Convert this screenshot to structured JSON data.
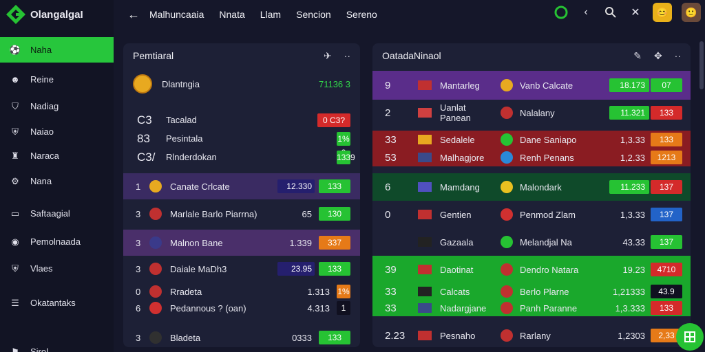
{
  "app": {
    "title": "OlangalgaI"
  },
  "topbar": {
    "nav": [
      "Malhuncaaia",
      "Nnata",
      "Llam",
      "Sencion",
      "Sereno"
    ]
  },
  "sidebar": {
    "items": [
      {
        "label": "Naha",
        "icon": "soccer-icon",
        "active": true
      },
      {
        "label": "Reine",
        "icon": "people-icon"
      },
      {
        "label": "Nadiag",
        "icon": "badge-icon"
      },
      {
        "label": "Naiao",
        "icon": "shield-icon"
      },
      {
        "label": "Naraca",
        "icon": "cup-icon"
      },
      {
        "label": "Nana",
        "icon": "gear-icon"
      },
      {
        "label": "Saftaagial",
        "icon": "screen-icon"
      },
      {
        "label": "Pemolnaada",
        "icon": "ball-icon"
      },
      {
        "label": "Vlaes",
        "icon": "shield-icon"
      },
      {
        "label": "Okatantaks",
        "icon": "menu-icon"
      },
      {
        "label": "Sirol",
        "icon": "flag-icon"
      }
    ]
  },
  "left_panel": {
    "title": "Pemtiaral",
    "header_row": {
      "name": "Dlantngia",
      "value": "71136 3"
    },
    "list": [
      {
        "num": "C3",
        "label": "Tacalad",
        "value": "0 C3?",
        "color": "r"
      },
      {
        "num": "83",
        "label": "Pesintala",
        "value": "1% 2",
        "color": "g"
      },
      {
        "num": "C3/",
        "label": "Rlnderdokan",
        "value": "1339",
        "color": "g"
      }
    ],
    "rows": [
      {
        "rank": "1",
        "team": "Canate Crlcate",
        "score": "12.330",
        "val": "133",
        "bg": "#3a2b62",
        "b1": "n",
        "b2": "g"
      },
      {
        "rank": "3",
        "team": "Marlale Barlo Piarrna)",
        "score": "65",
        "val": "130",
        "bg": "transparent",
        "b1": "",
        "b2": "g"
      },
      {
        "rank": "3",
        "team": "Malnon Bane",
        "score": "1.339",
        "val": "337",
        "bg": "#4a2f6a",
        "b1": "",
        "b2": "o"
      },
      {
        "rank": "3",
        "team": "Daiale MaDh3",
        "score": "23.95",
        "val": "133",
        "bg": "transparent",
        "b1": "n",
        "b2": "g"
      },
      {
        "rank": "0",
        "team": "Rradeta",
        "score": "1.313",
        "val": "1%",
        "bg": "transparent",
        "b1": "",
        "b2": "o"
      },
      {
        "rank": "6",
        "team": "Pedannous ? (oan)",
        "score": "4.313",
        "val": "1",
        "bg": "transparent",
        "b1": "",
        "b2": "dk"
      },
      {
        "rank": "3",
        "team": "Bladeta",
        "score": "0333",
        "val": "133",
        "bg": "transparent",
        "b1": "",
        "b2": "g"
      }
    ]
  },
  "right_panel": {
    "title": "OatadaNinaol",
    "rows": [
      {
        "rank": "9",
        "home": "Mantarleg",
        "away": "Vanb Calcate",
        "score": "18.173",
        "val": "07",
        "bg": "#5a2d8a",
        "b1": "g",
        "b2": "g"
      },
      {
        "rank": "2",
        "home": "Uanlat Panean",
        "away": "Nalalany",
        "score": "11.321",
        "val": "133",
        "bg": "transparent",
        "b1": "g",
        "b2": "r"
      },
      {
        "rank": "33",
        "home": "Sedalele",
        "away": "Dane Saniapo",
        "score": "1,3.33",
        "val": "133",
        "bg": "#8a1c22",
        "b1": "",
        "b2": "o"
      },
      {
        "rank": "53",
        "home": "Malhagjore",
        "away": "Renh Penans",
        "score": "1,2.33",
        "val": "1213",
        "bg": "#8a1c22",
        "b1": "",
        "b2": "o"
      },
      {
        "rank": "6",
        "home": "Mamdang",
        "away": "Malondark",
        "score": "11.233",
        "val": "137",
        "bg": "#0f4a2a",
        "b1": "g",
        "b2": "r"
      },
      {
        "rank": "0",
        "home": "Gentien",
        "away": "Penmod Zlam",
        "score": "1,3.33",
        "val": "137",
        "bg": "transparent",
        "b1": "",
        "b2": "b"
      },
      {
        "rank": "",
        "home": "Gazaala",
        "away": "Melandjal Na",
        "score": "43.33",
        "val": "137",
        "bg": "transparent",
        "b1": "",
        "b2": "g"
      },
      {
        "rank": "39",
        "home": "Daotinat",
        "away": "Dendro Natara",
        "score": "19.23",
        "val": "4710",
        "bg": "#1aa82c",
        "b1": "",
        "b2": "r"
      },
      {
        "rank": "33",
        "home": "Calcats",
        "away": "Berlo Plarne",
        "score": "1,21333",
        "val": "43.9",
        "bg": "#1aa82c",
        "b1": "",
        "b2": "dk"
      },
      {
        "rank": "33",
        "home": "Nadargjane",
        "away": "Panh Paranne",
        "score": "1,3.333",
        "val": "133",
        "bg": "#1aa82c",
        "b1": "",
        "b2": "r"
      },
      {
        "rank": "2.23",
        "home": "Pesnaho",
        "away": "Rarlany",
        "score": "1,2303",
        "val": "2,33",
        "bg": "transparent",
        "b1": "",
        "b2": "o"
      }
    ]
  },
  "colors": {
    "accent": "#26c233",
    "red": "#d42a2a",
    "orange": "#e67a18",
    "purple": "#5a2d8a"
  }
}
